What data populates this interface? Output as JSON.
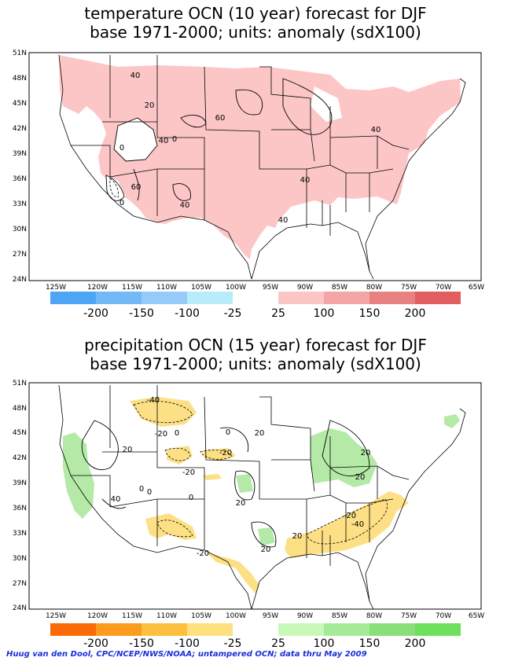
{
  "maps": [
    {
      "title_line1": "temperature OCN (10 year) forecast for DJF",
      "title_line2": "base 1971-2000; units: anomaly (sdX100)",
      "lat_labels": [
        "51N",
        "48N",
        "45N",
        "42N",
        "39N",
        "36N",
        "33N",
        "30N",
        "27N",
        "24N"
      ],
      "lon_labels": [
        "125W",
        "120W",
        "115W",
        "110W",
        "105W",
        "100W",
        "95W",
        "90W",
        "85W",
        "80W",
        "75W",
        "70W",
        "65W"
      ],
      "contour_labels": [
        "40",
        "20",
        "60",
        "40",
        "0",
        "0",
        "40",
        "60",
        "0",
        "40",
        "40",
        "40"
      ],
      "colorbar_neg_colors": [
        "#4da6f5",
        "#73b8f7",
        "#96cbf9",
        "#b7ecfb"
      ],
      "colorbar_pos_colors": [
        "#fdc6c6",
        "#f4a6a6",
        "#e88181",
        "#e05e5e"
      ],
      "colorbar_labels": [
        "-200",
        "-150",
        "-100",
        "-25",
        "25",
        "100",
        "150",
        "200"
      ],
      "fill_color": "#fcc6c6"
    },
    {
      "title_line1": "precipitation OCN (15 year) forecast for DJF",
      "title_line2": "base 1971-2000; units: anomaly (sdX100)",
      "lat_labels": [
        "51N",
        "48N",
        "45N",
        "42N",
        "39N",
        "36N",
        "33N",
        "30N",
        "27N",
        "24N"
      ],
      "lon_labels": [
        "125W",
        "120W",
        "115W",
        "110W",
        "105W",
        "100W",
        "95W",
        "90W",
        "85W",
        "80W",
        "75W",
        "70W",
        "65W"
      ],
      "contour_labels": [
        "-40",
        "-20",
        "0",
        "0",
        "20",
        "20",
        "-20",
        "20",
        "-20",
        "0",
        "40",
        "20",
        "20",
        "-20",
        "-40",
        "0",
        "-20",
        "20",
        "20",
        "0"
      ],
      "colorbar_neg_colors": [
        "#fa6a05",
        "#fb9c1c",
        "#fdbf3e",
        "#fee07e"
      ],
      "colorbar_pos_colors": [
        "#c8f9b9",
        "#a5eb95",
        "#89e07a",
        "#6fe05c"
      ],
      "colorbar_labels": [
        "-200",
        "-150",
        "-100",
        "-25",
        "25",
        "100",
        "150",
        "200"
      ],
      "fill_dry": "#fde085",
      "fill_wet": "#b4e9a8"
    }
  ],
  "footer": "Huug van den Dool, CPC/NCEP/NWS/NOAA; untampered OCN; data thru May 2009"
}
